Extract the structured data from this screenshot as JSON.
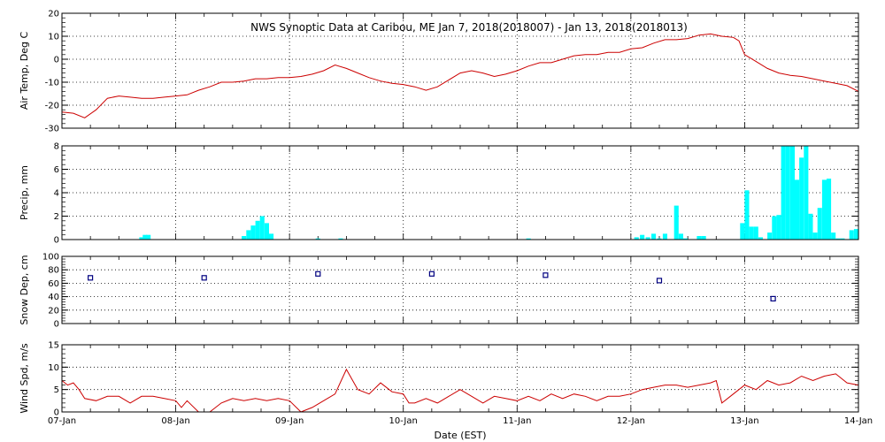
{
  "chart_data": {
    "type": "line",
    "title": "NWS Synoptic Data at Caribou, ME   Jan  7, 2018(2018007) - Jan 13, 2018(2018013)",
    "xlabel": "Date (EST)",
    "x_ticks": [
      "07-Jan",
      "08-Jan",
      "09-Jan",
      "10-Jan",
      "11-Jan",
      "12-Jan",
      "13-Jan",
      "14-Jan"
    ],
    "xlim_days": [
      0,
      7
    ],
    "grid": true,
    "panels": [
      {
        "ylabel": "Air Temp, Deg C",
        "type": "line",
        "color": "#cc0000",
        "ylim": [
          -30,
          20
        ],
        "yticks": [
          20,
          10,
          0,
          -10,
          -20,
          -30
        ],
        "x": [
          0,
          0.1,
          0.2,
          0.3,
          0.4,
          0.5,
          0.6,
          0.7,
          0.8,
          0.9,
          1.0,
          1.1,
          1.2,
          1.3,
          1.4,
          1.5,
          1.6,
          1.7,
          1.8,
          1.9,
          2.0,
          2.1,
          2.2,
          2.3,
          2.4,
          2.5,
          2.55,
          2.6,
          2.7,
          2.8,
          2.9,
          3.0,
          3.1,
          3.2,
          3.3,
          3.4,
          3.5,
          3.6,
          3.7,
          3.8,
          3.9,
          4.0,
          4.1,
          4.2,
          4.3,
          4.4,
          4.5,
          4.6,
          4.7,
          4.8,
          4.9,
          5.0,
          5.1,
          5.2,
          5.3,
          5.4,
          5.5,
          5.6,
          5.7,
          5.8,
          5.9,
          5.95,
          6.0,
          6.1,
          6.2,
          6.3,
          6.4,
          6.5,
          6.6,
          6.7,
          6.8,
          6.9,
          7.0
        ],
        "y": [
          -23,
          -23.5,
          -25.5,
          -22,
          -17,
          -16,
          -16.5,
          -17,
          -17,
          -16.5,
          -16,
          -15.5,
          -13.5,
          -12,
          -10,
          -10,
          -9.5,
          -8.5,
          -8.5,
          -8,
          -8,
          -7.5,
          -6.5,
          -5,
          -2.5,
          -4,
          -5,
          -6,
          -8,
          -9.5,
          -10.5,
          -11,
          -12,
          -13.5,
          -12,
          -9,
          -6,
          -5,
          -6,
          -7.5,
          -6.5,
          -5,
          -3,
          -1.5,
          -1.5,
          0,
          1.5,
          2,
          2,
          3,
          3,
          4.5,
          5,
          7,
          8.5,
          8.5,
          9,
          10.5,
          11,
          10,
          9.5,
          8,
          2,
          -1,
          -4,
          -6,
          -7,
          -7.5,
          -8.5,
          -9.5,
          -10.5,
          -11.5,
          -14
        ]
      },
      {
        "ylabel": "Precip, mm",
        "type": "bar",
        "color": "#00ffff",
        "ylim": [
          0,
          8
        ],
        "yticks": [
          8,
          6,
          4,
          2,
          0
        ],
        "bar_width_days": 0.04,
        "x": [
          0.7,
          0.73,
          0.76,
          1.6,
          1.64,
          1.68,
          1.72,
          1.76,
          1.8,
          1.84,
          2.25,
          2.45,
          4.1,
          5.05,
          5.1,
          5.15,
          5.2,
          5.25,
          5.3,
          5.4,
          5.44,
          5.48,
          5.6,
          5.64,
          5.98,
          6.02,
          6.06,
          6.1,
          6.14,
          6.22,
          6.26,
          6.3,
          6.34,
          6.38,
          6.42,
          6.46,
          6.5,
          6.54,
          6.58,
          6.62,
          6.66,
          6.7,
          6.74,
          6.78,
          6.82,
          6.86,
          6.94,
          6.98
        ],
        "values": [
          0.2,
          0.4,
          0.4,
          0.3,
          0.8,
          1.2,
          1.6,
          2.0,
          1.4,
          0.5,
          0.1,
          0.1,
          0.1,
          0.2,
          0.4,
          0.2,
          0.5,
          0.1,
          0.5,
          2.9,
          0.5,
          0.1,
          0.3,
          0.3,
          1.4,
          4.2,
          1.1,
          1.1,
          0.2,
          0.6,
          2.0,
          2.1,
          8.0,
          8.0,
          8.0,
          5.1,
          7.0,
          8.0,
          2.2,
          0.6,
          2.7,
          5.1,
          5.2,
          0.6,
          0.1,
          0.1,
          0.8,
          0.9
        ]
      },
      {
        "ylabel": "Snow Dep, cm",
        "type": "scatter",
        "color": "#000080",
        "ylim": [
          0,
          100
        ],
        "yticks": [
          100,
          80,
          60,
          40,
          20,
          0
        ],
        "x": [
          0.25,
          1.25,
          2.25,
          3.25,
          4.25,
          5.25,
          6.25
        ],
        "y": [
          68,
          68,
          74,
          74,
          72,
          64,
          37
        ]
      },
      {
        "ylabel": "Wind Spd, m/s",
        "type": "line",
        "color": "#cc0000",
        "ylim": [
          0,
          15
        ],
        "yticks": [
          15,
          10,
          5,
          0
        ],
        "x": [
          0,
          0.05,
          0.1,
          0.15,
          0.2,
          0.3,
          0.4,
          0.5,
          0.6,
          0.7,
          0.8,
          0.9,
          1.0,
          1.05,
          1.1,
          1.2,
          1.3,
          1.4,
          1.5,
          1.6,
          1.7,
          1.8,
          1.9,
          2.0,
          2.1,
          2.2,
          2.3,
          2.4,
          2.5,
          2.6,
          2.7,
          2.8,
          2.9,
          3.0,
          3.05,
          3.1,
          3.2,
          3.3,
          3.4,
          3.5,
          3.6,
          3.7,
          3.8,
          3.9,
          4.0,
          4.1,
          4.2,
          4.3,
          4.4,
          4.5,
          4.6,
          4.7,
          4.8,
          4.9,
          5.0,
          5.1,
          5.2,
          5.3,
          5.4,
          5.5,
          5.6,
          5.7,
          5.75,
          5.8,
          5.9,
          6.0,
          6.1,
          6.2,
          6.3,
          6.4,
          6.5,
          6.6,
          6.7,
          6.8,
          6.9,
          7.0
        ],
        "y": [
          7,
          6,
          6.5,
          5,
          3,
          2.5,
          3.5,
          3.5,
          2,
          3.5,
          3.5,
          3,
          2.5,
          1,
          2.5,
          0,
          0,
          2,
          3,
          2.5,
          3,
          2.5,
          3,
          2.5,
          0,
          1,
          2.5,
          4,
          9.5,
          5,
          4,
          6.5,
          4.5,
          4,
          2,
          2,
          3,
          2,
          3.5,
          5,
          3.5,
          2,
          3.5,
          3,
          2.5,
          3.5,
          2.5,
          4,
          3,
          4,
          3.5,
          2.5,
          3.5,
          3.5,
          4,
          5,
          5.5,
          6,
          6,
          5.5,
          6,
          6.5,
          7,
          2,
          4,
          6,
          5,
          7,
          6,
          6.5,
          8,
          7,
          8,
          8.5,
          6.5,
          6
        ]
      }
    ]
  }
}
